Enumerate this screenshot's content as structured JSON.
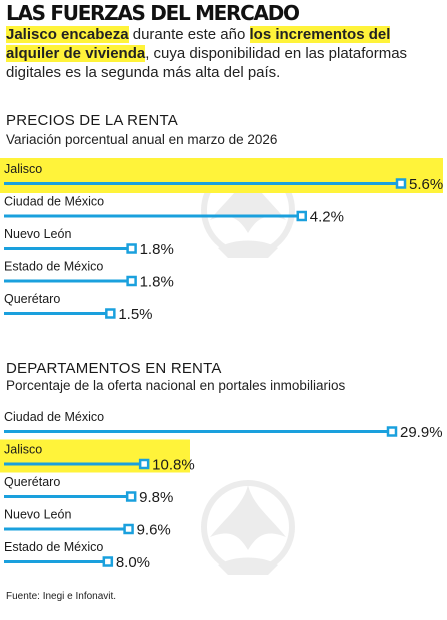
{
  "header": {
    "title": "LAS FUERZAS DEL MERCADO",
    "intro": [
      {
        "text": "Jalisco encabeza",
        "hl": true
      },
      {
        "text": " durante este año ",
        "hl": false
      },
      {
        "text": "los incrementos del alquiler de vivienda",
        "hl": true
      },
      {
        "text": ", cuya disponibilidad en las plataformas digitales es la segunda más alta del país.",
        "hl": false
      }
    ]
  },
  "colors": {
    "bar": "#1aa0dd",
    "highlight": "#fff33a",
    "marker_fill": "#ffffff"
  },
  "sections": [
    {
      "title": "PRECIOS DE LA RENTA",
      "subtitle": "Variación porcentual anual en marzo de 2026"
    },
    {
      "title": "DEPARTAMENTOS EN RENTA",
      "subtitle": "Porcentaje de la oferta nacional en portales inmobiliarios"
    }
  ],
  "chart_data": [
    {
      "type": "bar",
      "orientation": "horizontal",
      "title": "PRECIOS DE LA RENTA",
      "subtitle": "Variación porcentual anual en marzo de 2026",
      "categories": [
        "Jalisco",
        "Ciudad de México",
        "Nuevo León",
        "Estado de México",
        "Querétaro"
      ],
      "values": [
        5.6,
        4.2,
        1.8,
        1.8,
        1.5
      ],
      "value_labels": [
        "5.6%",
        "4.2%",
        "1.8%",
        "1.8%",
        "1.5%"
      ],
      "highlighted": [
        "Jalisco"
      ],
      "xlim": [
        0,
        5.6
      ]
    },
    {
      "type": "bar",
      "orientation": "horizontal",
      "title": "DEPARTAMENTOS EN RENTA",
      "subtitle": "Porcentaje de la oferta nacional en portales inmobiliarios",
      "categories": [
        "Ciudad de México",
        "Jalisco",
        "Querétaro",
        "Nuevo León",
        "Estado de México"
      ],
      "values": [
        29.9,
        10.8,
        9.8,
        9.6,
        8.0
      ],
      "value_labels": [
        "29.9%",
        "10.8%",
        "9.8%",
        "9.6%",
        "8.0%"
      ],
      "highlighted": [
        "Jalisco"
      ],
      "xlim": [
        0,
        29.9
      ]
    }
  ],
  "footer": {
    "source": "Fuente: Inegi e Infonavit."
  }
}
